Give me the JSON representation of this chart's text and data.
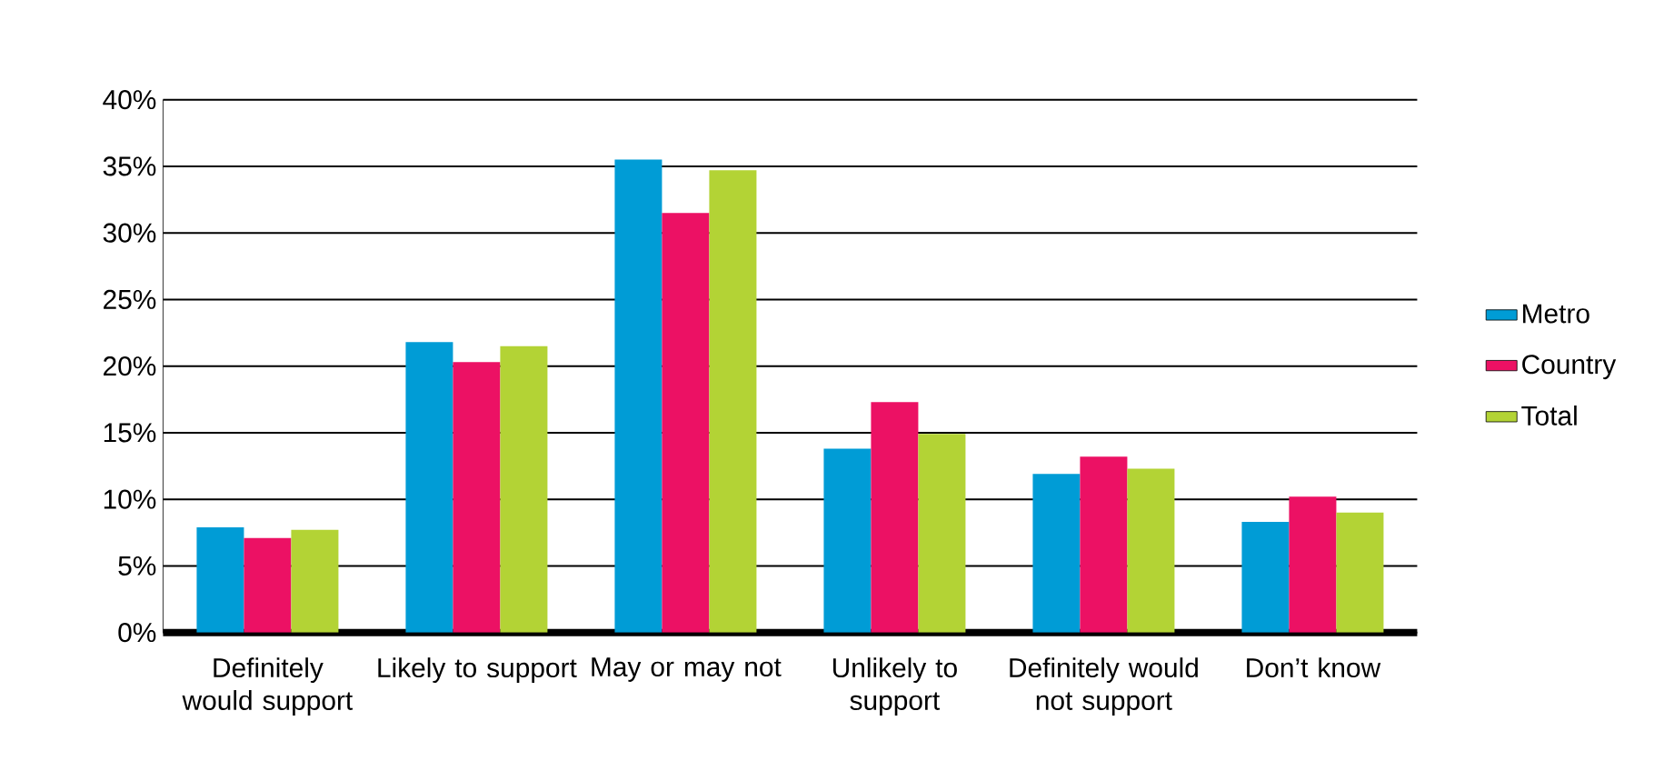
{
  "chart_data": {
    "type": "bar",
    "categories": [
      "Definitely would support",
      "Likely to support",
      "May or may not",
      "Unlikely to support",
      "Definitely would not support",
      "Don’t know"
    ],
    "series": [
      {
        "name": "Metro",
        "color": "#009cd6",
        "values": [
          7.9,
          21.8,
          35.5,
          13.8,
          11.9,
          8.3
        ]
      },
      {
        "name": "Country",
        "color": "#ec1164",
        "values": [
          7.1,
          20.3,
          31.5,
          17.3,
          13.2,
          10.2
        ]
      },
      {
        "name": "Total",
        "color": "#b3d335",
        "values": [
          7.7,
          21.5,
          34.7,
          14.9,
          12.3,
          9.0
        ]
      }
    ],
    "ylim": [
      0,
      40
    ],
    "yticks": [
      {
        "value": 0,
        "label": "0%"
      },
      {
        "value": 5,
        "label": "5%"
      },
      {
        "value": 10,
        "label": "10%"
      },
      {
        "value": 15,
        "label": "15%"
      },
      {
        "value": 20,
        "label": "20%"
      },
      {
        "value": 25,
        "label": "25%"
      },
      {
        "value": 30,
        "label": "30%"
      },
      {
        "value": 35,
        "label": "35%"
      },
      {
        "value": 40,
        "label": "40%"
      }
    ],
    "grid": "y",
    "legend": "right"
  }
}
